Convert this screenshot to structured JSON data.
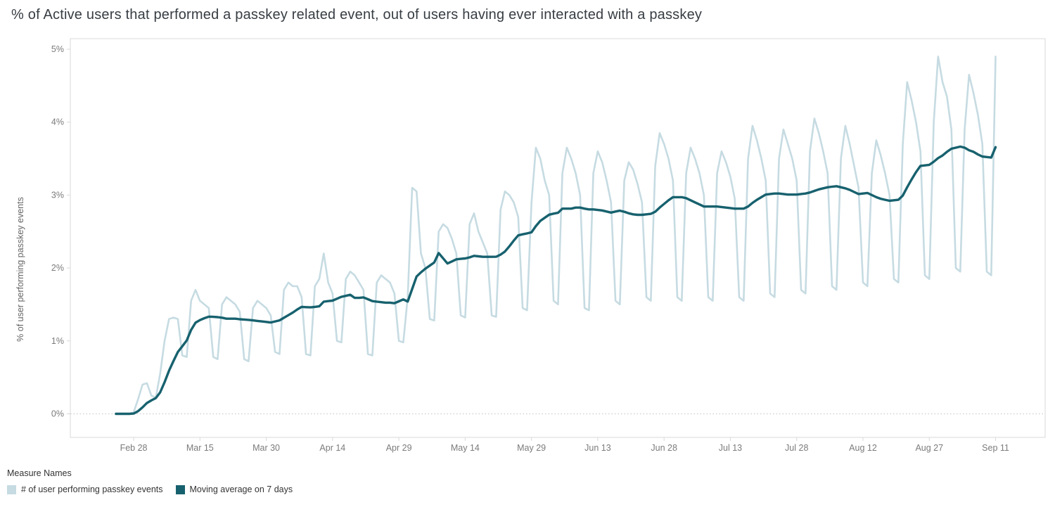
{
  "title": "% of Active users that performed a passkey related event, out of users having ever interacted with a passkey",
  "legend": {
    "title": "Measure Names",
    "items": [
      {
        "label": "# of user performing passkey events",
        "color": "#c6dbe2"
      },
      {
        "label": "Moving average on 7 days",
        "color": "#17616e"
      }
    ]
  },
  "chart_data": {
    "type": "line",
    "title": "% of Active users that performed a passkey related event, out of users having ever interacted with a passkey",
    "xlabel": "",
    "ylabel": "% of user performing passkey events",
    "ylim": [
      0,
      5
    ],
    "grid": "zero-line-only",
    "legend_position": "bottom-left",
    "x_unit": "day",
    "x_start_date": "Feb 24",
    "yticks": [
      {
        "label": "0%",
        "value": 0
      },
      {
        "label": "1%",
        "value": 1
      },
      {
        "label": "2%",
        "value": 2
      },
      {
        "label": "3%",
        "value": 3
      },
      {
        "label": "4%",
        "value": 4
      },
      {
        "label": "5%",
        "value": 5
      }
    ],
    "xticks": [
      {
        "label": "Feb 28",
        "day": 4
      },
      {
        "label": "Mar 15",
        "day": 19
      },
      {
        "label": "Mar 30",
        "day": 34
      },
      {
        "label": "Apr 14",
        "day": 49
      },
      {
        "label": "Apr 29",
        "day": 64
      },
      {
        "label": "May 14",
        "day": 79
      },
      {
        "label": "May 29",
        "day": 94
      },
      {
        "label": "Jun 13",
        "day": 109
      },
      {
        "label": "Jun 28",
        "day": 124
      },
      {
        "label": "Jul 13",
        "day": 139
      },
      {
        "label": "Jul 28",
        "day": 154
      },
      {
        "label": "Aug 12",
        "day": 169
      },
      {
        "label": "Aug 27",
        "day": 184
      },
      {
        "label": "Sep 11",
        "day": 199
      }
    ],
    "series": [
      {
        "name": "# of user performing passkey events",
        "color": "#c6dbe2",
        "values": [
          0,
          0,
          0,
          0,
          0.02,
          0.2,
          0.4,
          0.42,
          0.25,
          0.22,
          0.55,
          1.0,
          1.3,
          1.32,
          1.3,
          0.8,
          0.78,
          1.55,
          1.7,
          1.55,
          1.5,
          1.45,
          0.78,
          0.75,
          1.5,
          1.6,
          1.55,
          1.5,
          1.4,
          0.75,
          0.72,
          1.45,
          1.55,
          1.5,
          1.45,
          1.35,
          0.85,
          0.82,
          1.7,
          1.8,
          1.75,
          1.75,
          1.6,
          0.82,
          0.8,
          1.75,
          1.85,
          2.2,
          1.8,
          1.65,
          1.0,
          0.98,
          1.85,
          1.95,
          1.9,
          1.8,
          1.7,
          0.82,
          0.8,
          1.8,
          1.9,
          1.85,
          1.8,
          1.65,
          1.0,
          0.98,
          1.6,
          3.1,
          3.05,
          2.2,
          2.0,
          1.3,
          1.28,
          2.5,
          2.6,
          2.55,
          2.4,
          2.2,
          1.35,
          1.32,
          2.6,
          2.75,
          2.5,
          2.35,
          2.2,
          1.35,
          1.33,
          2.8,
          3.05,
          3.0,
          2.9,
          2.7,
          1.45,
          1.42,
          2.9,
          3.65,
          3.5,
          3.2,
          3.0,
          1.55,
          1.5,
          3.3,
          3.65,
          3.5,
          3.3,
          3.0,
          1.45,
          1.42,
          3.3,
          3.6,
          3.45,
          3.2,
          2.9,
          1.55,
          1.5,
          3.2,
          3.45,
          3.35,
          3.15,
          2.9,
          1.6,
          1.55,
          3.4,
          3.85,
          3.7,
          3.5,
          3.2,
          1.6,
          1.55,
          3.3,
          3.65,
          3.5,
          3.3,
          3.0,
          1.6,
          1.55,
          3.3,
          3.6,
          3.45,
          3.25,
          2.95,
          1.6,
          1.55,
          3.5,
          3.95,
          3.75,
          3.5,
          3.2,
          1.65,
          1.6,
          3.5,
          3.9,
          3.7,
          3.5,
          3.2,
          1.7,
          1.65,
          3.6,
          4.05,
          3.85,
          3.6,
          3.3,
          1.75,
          1.7,
          3.5,
          3.95,
          3.7,
          3.4,
          3.1,
          1.8,
          1.75,
          3.3,
          3.75,
          3.55,
          3.3,
          3.0,
          1.85,
          1.8,
          3.7,
          4.55,
          4.3,
          4.0,
          3.6,
          1.9,
          1.85,
          4.0,
          4.9,
          4.55,
          4.35,
          3.9,
          2.0,
          1.95,
          3.9,
          4.65,
          4.4,
          4.1,
          3.7,
          1.95,
          1.9,
          4.9
        ]
      },
      {
        "name": "Moving average on 7 days",
        "color": "#17616e",
        "window": 7,
        "derived_from": "# of user performing passkey events"
      }
    ]
  }
}
